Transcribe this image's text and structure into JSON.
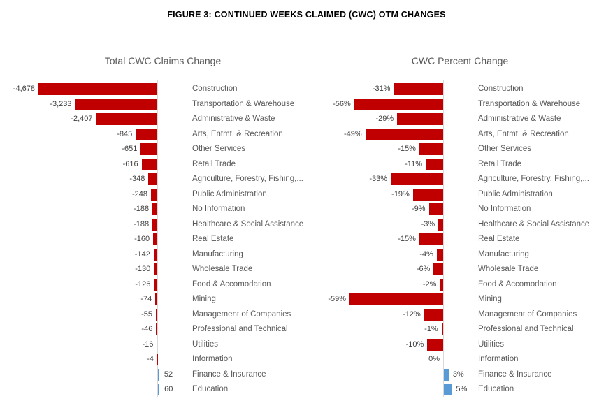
{
  "page_title": "FIGURE 3: CONTINUED WEEKS CLAIMED (CWC) OTM CHANGES",
  "colors": {
    "negative_bar": "#c00000",
    "positive_bar": "#5b9bd5",
    "axis_line": "#d9d9d9",
    "value_label": "#404040",
    "category_label": "#595959"
  },
  "chart_data": [
    {
      "type": "bar",
      "orientation": "horizontal",
      "title": "Total CWC Claims Change",
      "legend": "none",
      "grid": "off",
      "xlim": [
        -4678,
        600
      ],
      "categories": [
        "Construction",
        "Transportation & Warehouse",
        "Administrative & Waste",
        "Arts, Entmt. & Recreation",
        "Other Services",
        "Retail Trade",
        "Agriculture, Forestry, Fishing,...",
        "Public Administration",
        "No Information",
        "Healthcare & Social Assistance",
        "Real Estate",
        "Manufacturing",
        "Wholesale Trade",
        "Food & Accomodation",
        "Mining",
        "Management of Companies",
        "Professional and Technical",
        "Utilities",
        "Information",
        "Finance & Insurance",
        "Education"
      ],
      "values": [
        -4678,
        -3233,
        -2407,
        -845,
        -651,
        -616,
        -348,
        -248,
        -188,
        -188,
        -160,
        -142,
        -130,
        -126,
        -74,
        -55,
        -46,
        -16,
        -4,
        52,
        60
      ],
      "value_labels": [
        "-4,678",
        "-3,233",
        "-2,407",
        "-845",
        "-651",
        "-616",
        "-348",
        "-248",
        "-188",
        "-188",
        "-160",
        "-142",
        "-130",
        "-126",
        "-74",
        "-55",
        "-46",
        "-16",
        "-4",
        "52",
        "60"
      ]
    },
    {
      "type": "bar",
      "orientation": "horizontal",
      "title": "CWC Percent Change",
      "legend": "none",
      "grid": "off",
      "xlim": [
        -59,
        6
      ],
      "categories": [
        "Construction",
        "Transportation & Warehouse",
        "Administrative & Waste",
        "Arts, Entmt. & Recreation",
        "Other Services",
        "Retail Trade",
        "Agriculture, Forestry, Fishing,...",
        "Public Administration",
        "No Information",
        "Healthcare & Social Assistance",
        "Real Estate",
        "Manufacturing",
        "Wholesale Trade",
        "Food & Accomodation",
        "Mining",
        "Management of Companies",
        "Professional and Technical",
        "Utilities",
        "Information",
        "Finance & Insurance",
        "Education"
      ],
      "values": [
        -31,
        -56,
        -29,
        -49,
        -15,
        -11,
        -33,
        -19,
        -9,
        -3,
        -15,
        -4,
        -6,
        -2,
        -59,
        -12,
        -1,
        -10,
        0,
        3,
        5
      ],
      "value_labels": [
        "-31%",
        "-56%",
        "-29%",
        "-49%",
        "-15%",
        "-11%",
        "-33%",
        "-19%",
        "-9%",
        "-3%",
        "-15%",
        "-4%",
        "-6%",
        "-2%",
        "-59%",
        "-12%",
        "-1%",
        "-10%",
        "0%",
        "3%",
        "5%"
      ]
    }
  ]
}
